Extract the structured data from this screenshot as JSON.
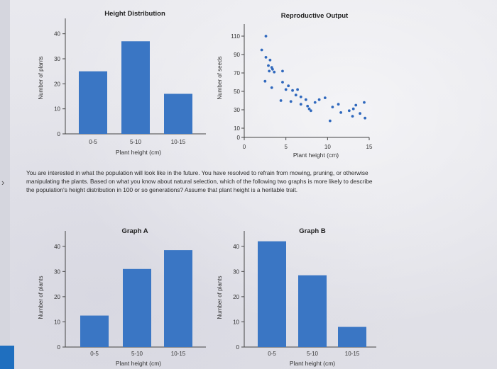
{
  "question": "You are interested in what the population will look like in the future. You have resolved to refrain from mowing, pruning, or otherwise manipulating the plants. Based on what you know about natural selection, which of the following two graphs is more likely to describe the population's height distribution in 100 or so generations? Assume that plant height is a heritable trait.",
  "colors": {
    "bar": "#3a76c4",
    "dot": "#2f68bd",
    "axis": "#444444"
  },
  "chart_data": [
    {
      "id": "height",
      "type": "bar",
      "title": "Height Distribution",
      "xlabel": "Plant height (cm)",
      "ylabel": "Number of plants",
      "categories": [
        "0-5",
        "5-10",
        "10-15"
      ],
      "values": [
        25,
        37,
        16
      ],
      "ylim": [
        0,
        45
      ],
      "yticks": [
        0,
        10,
        20,
        30,
        40
      ],
      "grid": false
    },
    {
      "id": "repro",
      "type": "scatter",
      "title": "Reproductive Output",
      "xlabel": "Plant height (cm)",
      "ylabel": "Number of seeds",
      "xlim": [
        0,
        15
      ],
      "ylim": [
        0,
        120
      ],
      "xticks": [
        0,
        5,
        10,
        15
      ],
      "yticks": [
        0,
        10,
        30,
        50,
        70,
        90,
        110
      ],
      "grid": false,
      "points": [
        {
          "x": 2.6,
          "y": 110
        },
        {
          "x": 2.1,
          "y": 95
        },
        {
          "x": 2.6,
          "y": 87
        },
        {
          "x": 3.1,
          "y": 84
        },
        {
          "x": 2.9,
          "y": 78
        },
        {
          "x": 3.3,
          "y": 76
        },
        {
          "x": 3.4,
          "y": 74
        },
        {
          "x": 3.0,
          "y": 72
        },
        {
          "x": 3.6,
          "y": 71
        },
        {
          "x": 4.6,
          "y": 72
        },
        {
          "x": 2.5,
          "y": 61
        },
        {
          "x": 3.3,
          "y": 54
        },
        {
          "x": 4.6,
          "y": 60
        },
        {
          "x": 5.3,
          "y": 56
        },
        {
          "x": 5.0,
          "y": 52
        },
        {
          "x": 5.8,
          "y": 51
        },
        {
          "x": 6.4,
          "y": 52
        },
        {
          "x": 6.2,
          "y": 46
        },
        {
          "x": 6.8,
          "y": 44
        },
        {
          "x": 4.4,
          "y": 40
        },
        {
          "x": 5.6,
          "y": 39
        },
        {
          "x": 6.8,
          "y": 36
        },
        {
          "x": 7.4,
          "y": 41
        },
        {
          "x": 7.6,
          "y": 34
        },
        {
          "x": 7.8,
          "y": 31
        },
        {
          "x": 8.0,
          "y": 29
        },
        {
          "x": 8.5,
          "y": 38
        },
        {
          "x": 9.0,
          "y": 41
        },
        {
          "x": 9.7,
          "y": 43
        },
        {
          "x": 10.6,
          "y": 33
        },
        {
          "x": 11.3,
          "y": 36
        },
        {
          "x": 11.6,
          "y": 27
        },
        {
          "x": 12.6,
          "y": 29
        },
        {
          "x": 13.1,
          "y": 31
        },
        {
          "x": 13.4,
          "y": 35
        },
        {
          "x": 13.9,
          "y": 26
        },
        {
          "x": 14.4,
          "y": 38
        },
        {
          "x": 10.3,
          "y": 18
        },
        {
          "x": 13.0,
          "y": 23
        },
        {
          "x": 14.5,
          "y": 21
        }
      ]
    },
    {
      "id": "graphA",
      "type": "bar",
      "title": "Graph A",
      "xlabel": "Plant height (cm)",
      "ylabel": "Number of plants",
      "categories": [
        "0-5",
        "5-10",
        "10-15"
      ],
      "values": [
        12.5,
        31,
        38.5
      ],
      "ylim": [
        0,
        45
      ],
      "yticks": [
        0,
        10,
        20,
        30,
        40
      ],
      "grid": false
    },
    {
      "id": "graphB",
      "type": "bar",
      "title": "Graph B",
      "xlabel": "Plant height (cm)",
      "ylabel": "Number of plants",
      "categories": [
        "0-5",
        "5-10",
        "10-15"
      ],
      "values": [
        42,
        28.5,
        8
      ],
      "ylim": [
        0,
        45
      ],
      "yticks": [
        0,
        10,
        20,
        30,
        40
      ],
      "grid": false
    }
  ]
}
